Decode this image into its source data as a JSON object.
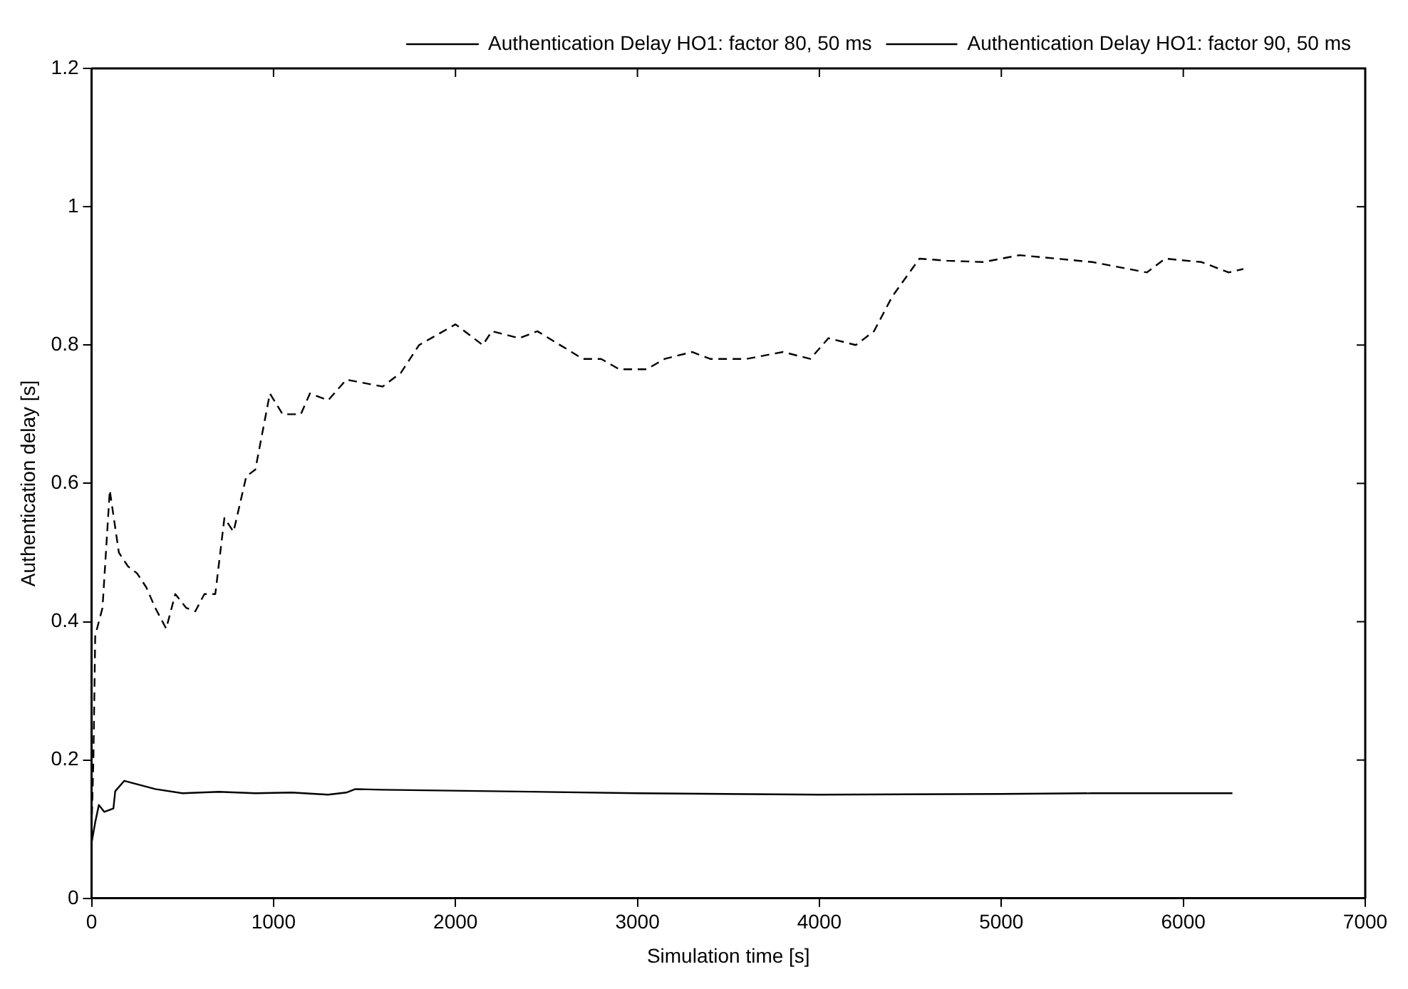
{
  "chart_data": {
    "type": "line",
    "xlabel": "Simulation time [s]",
    "ylabel": "Authentication delay [s]",
    "xlim": [
      0,
      7000
    ],
    "xticks": [
      0,
      1000,
      2000,
      3000,
      4000,
      5000,
      6000,
      7000
    ],
    "ylim": [
      0,
      1.2
    ],
    "yticks": [
      0,
      0.2,
      0.4,
      0.6,
      0.8,
      1,
      1.2
    ],
    "grid": false,
    "legend": "top right",
    "marker": "none",
    "series": [
      {
        "name": "Authentication Delay HO1: factor 80, 50 ms",
        "color": "#000000",
        "line_style": "solid",
        "x": [
          0,
          20,
          40,
          70,
          120,
          130,
          180,
          250,
          350,
          500,
          700,
          900,
          1100,
          1300,
          1400,
          1450,
          1600,
          2200,
          3000,
          4000,
          5000,
          5500,
          6270
        ],
        "values": [
          0.08,
          0.11,
          0.135,
          0.125,
          0.13,
          0.155,
          0.17,
          0.165,
          0.158,
          0.152,
          0.154,
          0.152,
          0.153,
          0.15,
          0.153,
          0.158,
          0.157,
          0.155,
          0.152,
          0.15,
          0.151,
          0.152,
          0.152
        ]
      },
      {
        "name": "Authentication Delay HO1: factor 90, 50 ms",
        "color": "#000000",
        "line_style": "dashed",
        "x": [
          0,
          10,
          20,
          40,
          60,
          100,
          150,
          200,
          250,
          300,
          350,
          410,
          460,
          520,
          570,
          620,
          680,
          730,
          780,
          850,
          900,
          980,
          1050,
          1150,
          1200,
          1300,
          1400,
          1600,
          1700,
          1800,
          2000,
          2150,
          2200,
          2350,
          2450,
          2700,
          2800,
          2900,
          3050,
          3150,
          3300,
          3400,
          3600,
          3800,
          3950,
          4050,
          4200,
          4300,
          4400,
          4550,
          4700,
          4900,
          5100,
          5300,
          5500,
          5700,
          5800,
          5900,
          6100,
          6250,
          6330
        ],
        "values": [
          0.1,
          0.2,
          0.38,
          0.4,
          0.42,
          0.59,
          0.5,
          0.48,
          0.47,
          0.45,
          0.42,
          0.39,
          0.44,
          0.42,
          0.415,
          0.44,
          0.44,
          0.55,
          0.53,
          0.61,
          0.62,
          0.73,
          0.7,
          0.7,
          0.73,
          0.72,
          0.75,
          0.74,
          0.76,
          0.8,
          0.83,
          0.8,
          0.82,
          0.81,
          0.82,
          0.78,
          0.78,
          0.765,
          0.765,
          0.78,
          0.79,
          0.78,
          0.78,
          0.79,
          0.78,
          0.81,
          0.8,
          0.82,
          0.87,
          0.925,
          0.922,
          0.92,
          0.93,
          0.925,
          0.92,
          0.91,
          0.905,
          0.925,
          0.92,
          0.905,
          0.91
        ]
      }
    ]
  }
}
